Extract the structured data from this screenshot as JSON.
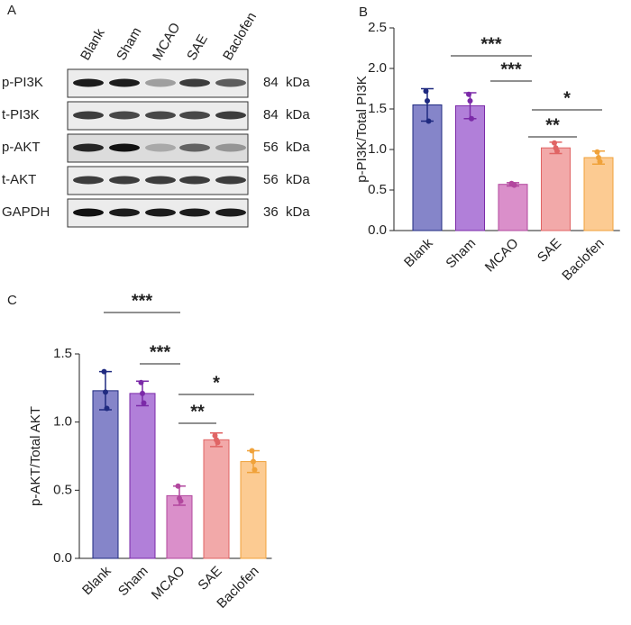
{
  "panels": [
    "A",
    "B",
    "C"
  ],
  "blot": {
    "lanes": [
      "Blank",
      "Sham",
      "MCAO",
      "SAE",
      "Baclofen"
    ],
    "rows": [
      {
        "label": "p-PI3K",
        "size": "84  kDa"
      },
      {
        "label": "t-PI3K",
        "size": "84  kDa"
      },
      {
        "label": "p-AKT",
        "size": "56  kDa"
      },
      {
        "label": "t-AKT",
        "size": "56  kDa"
      },
      {
        "label": "GAPDH",
        "size": "36  kDa"
      }
    ]
  },
  "chart_data": [
    {
      "type": "bar",
      "ylabel": "p-PI3K/Total PI3K",
      "categories": [
        "Blank",
        "Sham",
        "MCAO",
        "SAE",
        "Baclofen"
      ],
      "values": [
        1.55,
        1.54,
        0.57,
        1.02,
        0.9
      ],
      "errors": [
        0.2,
        0.16,
        0.02,
        0.07,
        0.08
      ],
      "points": [
        [
          1.72,
          1.6,
          1.35
        ],
        [
          1.68,
          1.6,
          1.38
        ],
        [
          0.58,
          0.57,
          0.56
        ],
        [
          1.08,
          1.02,
          0.98
        ],
        [
          0.97,
          0.9,
          0.85
        ]
      ],
      "colors": [
        "#8585c9",
        "#b17fd9",
        "#da8fca",
        "#f2a9a9",
        "#fccb92"
      ],
      "edge_colors": [
        "#1f2a80",
        "#7b2aa8",
        "#b2479e",
        "#e06464",
        "#f0a23a"
      ],
      "ylim": [
        0,
        2.5
      ],
      "yticks": [
        {
          "value": 0,
          "label": "0.0"
        },
        {
          "value": 0.5,
          "label": "0.5"
        },
        {
          "value": 1,
          "label": "1.0"
        },
        {
          "value": 1.5,
          "label": "1.5"
        },
        {
          "value": 2,
          "label": "2.0"
        },
        {
          "value": 2.5,
          "label": "2.5"
        }
      ],
      "annotations": [
        "***",
        "***",
        "*",
        "**"
      ]
    },
    {
      "type": "bar",
      "ylabel": "p-AKT/Total AKT",
      "categories": [
        "Blank",
        "Sham",
        "MCAO",
        "SAE",
        "Baclofen"
      ],
      "values": [
        1.23,
        1.21,
        0.46,
        0.87,
        0.71
      ],
      "errors": [
        0.14,
        0.09,
        0.07,
        0.05,
        0.08
      ],
      "points": [
        [
          1.37,
          1.22,
          1.1
        ],
        [
          1.29,
          1.21,
          1.14
        ],
        [
          0.53,
          0.44,
          0.42
        ],
        [
          0.9,
          0.87,
          0.85
        ],
        [
          0.79,
          0.71,
          0.65
        ]
      ],
      "colors": [
        "#8585c9",
        "#b17fd9",
        "#da8fca",
        "#f2a9a9",
        "#fccb92"
      ],
      "edge_colors": [
        "#1f2a80",
        "#7b2aa8",
        "#b2479e",
        "#e06464",
        "#f0a23a"
      ],
      "ylim": [
        0,
        1.5
      ],
      "yticks": [
        {
          "value": 0,
          "label": "0.0"
        },
        {
          "value": 0.5,
          "label": "0.5"
        },
        {
          "value": 1,
          "label": "1.0"
        },
        {
          "value": 1.5,
          "label": "1.5"
        }
      ],
      "annotations": [
        "***",
        "***",
        "*",
        "**"
      ]
    }
  ]
}
